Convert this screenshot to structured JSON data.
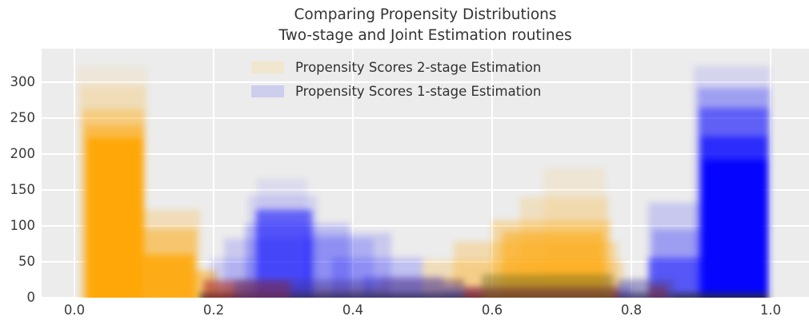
{
  "title": {
    "line1": "Comparing Propensity Distributions",
    "line2": "Two-stage and Joint Estimation routines"
  },
  "legend": {
    "entries": [
      {
        "label": "Propensity Scores 2-stage Estimation",
        "swatch_color": "#f1e7ce"
      },
      {
        "label": "Propensity Scores 1-stage Estimation",
        "swatch_color": "#cdcdee"
      }
    ]
  },
  "axes": {
    "x_ticks": [
      "0.0",
      "0.2",
      "0.4",
      "0.6",
      "0.8",
      "1.0"
    ],
    "x_tick_values": [
      0.0,
      0.2,
      0.4,
      0.6,
      0.8,
      1.0
    ],
    "y_ticks": [
      "0",
      "50",
      "100",
      "150",
      "200",
      "250",
      "300"
    ],
    "y_tick_values": [
      0,
      50,
      100,
      150,
      200,
      250,
      300
    ],
    "xlim": [
      -0.0471,
      1.0552
    ],
    "ylim": [
      0,
      347
    ],
    "background_color": "#ececec",
    "gridline_color": "#ffffff",
    "grid": true
  },
  "chart_data": {
    "type": "bar",
    "subtype": "overlaid translucent histograms (many blended draws, blurred)",
    "title": "Comparing Propensity Distributions — Two-stage and Joint Estimation routines",
    "xlabel": "",
    "ylabel": "",
    "xlim": [
      0,
      1
    ],
    "ylim": [
      0,
      347
    ],
    "legend_position": "upper center",
    "bin_start": 0.0,
    "bin_width": 0.05,
    "series": [
      {
        "name": "Propensity Scores 2-stage Estimation",
        "color": "#ffa500",
        "peak_counts": [
          315,
          315,
          120,
          60,
          25,
          20,
          20,
          20,
          20,
          25,
          40,
          65,
          110,
          180,
          175,
          60,
          25,
          15,
          10,
          10
        ]
      },
      {
        "name": "Propensity Scores 1-stage Estimation",
        "color": "#0000ff",
        "peak_counts": [
          0,
          0,
          5,
          15,
          60,
          165,
          140,
          90,
          70,
          40,
          25,
          20,
          20,
          20,
          20,
          25,
          130,
          280,
          315,
          290
        ]
      }
    ],
    "render_layers": [
      [
        0.005,
        0.105,
        322,
        "rgba(255,165,0,0.08)"
      ],
      [
        0.008,
        0.102,
        295,
        "rgba(255,165,0,0.16)"
      ],
      [
        0.012,
        0.1,
        262,
        "rgba(255,165,0,0.30)"
      ],
      [
        0.015,
        0.1,
        240,
        "rgba(255,165,0,0.45)"
      ],
      [
        0.018,
        0.098,
        222,
        "rgba(255,165,0,0.92)"
      ],
      [
        0.098,
        0.18,
        122,
        "rgba(255,165,0,0.22)"
      ],
      [
        0.098,
        0.176,
        96,
        "rgba(255,165,0,0.40)"
      ],
      [
        0.1,
        0.172,
        60,
        "rgba(255,165,0,0.78)"
      ],
      [
        0.172,
        0.205,
        38,
        "rgba(255,165,0,0.50)"
      ],
      [
        0.2,
        0.45,
        16,
        "rgba(255,165,0,0.35)"
      ],
      [
        0.44,
        0.56,
        28,
        "rgba(255,165,0,0.28)"
      ],
      [
        0.5,
        0.79,
        52,
        "rgba(255,165,0,0.22)"
      ],
      [
        0.545,
        0.78,
        78,
        "rgba(255,165,0,0.26)"
      ],
      [
        0.6,
        0.77,
        108,
        "rgba(255,165,0,0.30)"
      ],
      [
        0.64,
        0.768,
        140,
        "rgba(255,165,0,0.18)"
      ],
      [
        0.675,
        0.762,
        180,
        "rgba(255,165,0,0.10)"
      ],
      [
        0.615,
        0.76,
        92,
        "rgba(255,165,0,0.45)"
      ],
      [
        0.195,
        0.26,
        55,
        "rgba(0,0,255,0.12)"
      ],
      [
        0.215,
        0.43,
        82,
        "rgba(0,0,255,0.14)"
      ],
      [
        0.245,
        0.395,
        103,
        "rgba(0,0,255,0.18)"
      ],
      [
        0.261,
        0.341,
        122,
        "rgba(0,0,255,0.50)"
      ],
      [
        0.25,
        0.35,
        142,
        "rgba(0,0,255,0.10)"
      ],
      [
        0.262,
        0.335,
        166,
        "rgba(0,0,255,0.07)"
      ],
      [
        0.33,
        0.455,
        90,
        "rgba(0,0,255,0.15)"
      ],
      [
        0.37,
        0.5,
        56,
        "rgba(0,0,255,0.18)"
      ],
      [
        0.415,
        0.53,
        30,
        "rgba(0,0,255,0.22)"
      ],
      [
        0.53,
        0.8,
        14,
        "rgba(0,0,255,0.28)"
      ],
      [
        0.824,
        0.9,
        132,
        "rgba(0,0,255,0.15)"
      ],
      [
        0.83,
        0.9,
        95,
        "rgba(0,0,255,0.22)"
      ],
      [
        0.824,
        0.904,
        56,
        "rgba(0,0,255,0.45)"
      ],
      [
        0.89,
        0.999,
        322,
        "rgba(0,0,255,0.10)"
      ],
      [
        0.896,
        0.999,
        292,
        "rgba(0,0,255,0.25)"
      ],
      [
        0.898,
        0.997,
        265,
        "rgba(0,0,255,0.40)"
      ],
      [
        0.9,
        0.996,
        225,
        "rgba(0,0,255,0.55)"
      ],
      [
        0.902,
        0.995,
        192,
        "rgba(0,0,255,0.90)"
      ],
      [
        0.18,
        0.997,
        7,
        "rgba(45,45,52,0.75)"
      ],
      [
        0.185,
        0.31,
        24,
        "rgba(168,38,34,0.55)"
      ],
      [
        0.23,
        0.56,
        26,
        "rgba(66,56,150,0.42)"
      ],
      [
        0.56,
        0.78,
        16,
        "rgba(160,36,42,0.55)"
      ],
      [
        0.585,
        0.775,
        32,
        "rgba(116,106,30,0.48)"
      ],
      [
        0.78,
        0.862,
        26,
        "rgba(76,66,156,0.48)"
      ],
      [
        0.824,
        0.852,
        18,
        "rgba(128,46,72,0.50)"
      ]
    ]
  }
}
